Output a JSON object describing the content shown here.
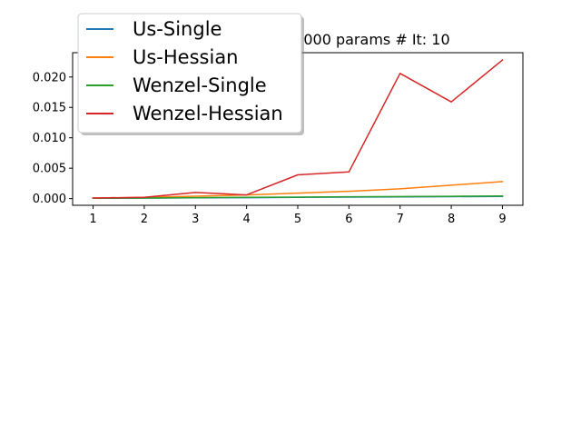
{
  "chart_data": {
    "type": "line",
    "title": "000 params # It: 10",
    "x": [
      1,
      2,
      3,
      4,
      5,
      6,
      7,
      8,
      9
    ],
    "x_ticks": [
      "1",
      "2",
      "3",
      "4",
      "5",
      "6",
      "7",
      "8",
      "9"
    ],
    "xlim": [
      0.6,
      9.4
    ],
    "ylim": [
      -0.0011,
      0.024
    ],
    "y_ticks": [
      {
        "value": 0.0,
        "label": "0.000"
      },
      {
        "value": 0.005,
        "label": "0.005"
      },
      {
        "value": 0.01,
        "label": "0.010"
      },
      {
        "value": 0.015,
        "label": "0.015"
      },
      {
        "value": 0.02,
        "label": "0.020"
      }
    ],
    "grid": false,
    "legend_position": "top-left",
    "series": [
      {
        "name": "Us-Single",
        "color": "#1f77b4",
        "values": [
          5e-05,
          8e-05,
          0.00012,
          0.00015,
          0.0002,
          0.00024,
          0.00028,
          0.00032,
          0.00036
        ]
      },
      {
        "name": "Us-Hessian",
        "color": "#ff7f0e",
        "values": [
          0.0001,
          0.0002,
          0.0004,
          0.0006,
          0.0009,
          0.0012,
          0.0016,
          0.0022,
          0.0028
        ]
      },
      {
        "name": "Wenzel-Single",
        "color": "#2ca02c",
        "values": [
          5e-05,
          0.0001,
          0.00015,
          0.0002,
          0.00025,
          0.0003,
          0.00033,
          0.00038,
          0.00043
        ]
      },
      {
        "name": "Wenzel-Hessian",
        "color": "#d62728",
        "values": [
          0.0001,
          0.0002,
          0.001,
          0.0006,
          0.0039,
          0.0044,
          0.0206,
          0.0159,
          0.0228
        ]
      }
    ]
  }
}
